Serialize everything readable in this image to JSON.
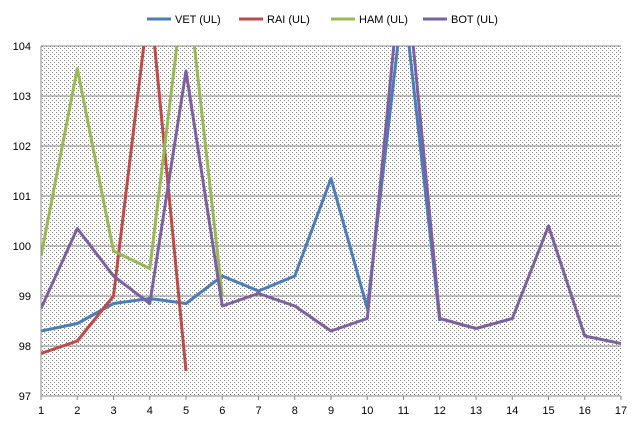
{
  "chart_data": {
    "type": "line",
    "title": "",
    "xlabel": "",
    "ylabel": "",
    "x": [
      1,
      2,
      3,
      4,
      5,
      6,
      7,
      8,
      9,
      10,
      11,
      12,
      13,
      14,
      15,
      16,
      17
    ],
    "x_tick_labels": [
      "1",
      "2",
      "3",
      "4",
      "5",
      "6",
      "7",
      "8",
      "9",
      "10",
      "11",
      "12",
      "13",
      "14",
      "15",
      "16",
      "17"
    ],
    "ylim": [
      97,
      104
    ],
    "y_ticks": [
      97,
      98,
      99,
      100,
      101,
      102,
      103,
      104
    ],
    "y_tick_labels": [
      "97",
      "98",
      "99",
      "100",
      "101",
      "102",
      "103",
      "104"
    ],
    "grid": true,
    "plot_area_background": "dotted",
    "legend_position": "top",
    "series": [
      {
        "name": "VET (UL)",
        "color": "#4a7ebb",
        "values": [
          98.3,
          98.45,
          98.85,
          98.95,
          98.85,
          99.4,
          99.1,
          99.4,
          101.35,
          98.75,
          105.0,
          98.5,
          null,
          null,
          null,
          null,
          null
        ]
      },
      {
        "name": "RAI (UL)",
        "color": "#be4b48",
        "values": [
          97.85,
          98.1,
          99.0,
          105.0,
          97.5,
          null,
          null,
          null,
          null,
          null,
          null,
          null,
          null,
          null,
          null,
          null,
          null
        ]
      },
      {
        "name": "HAM (UL)",
        "color": "#98b954",
        "values": [
          99.8,
          103.55,
          99.9,
          99.55,
          105.5,
          99.0,
          null,
          null,
          null,
          null,
          null,
          null,
          null,
          null,
          null,
          null,
          null
        ]
      },
      {
        "name": "BOT (UL)",
        "color": "#7d60a0",
        "values": [
          98.75,
          100.35,
          99.4,
          98.85,
          103.5,
          98.8,
          99.05,
          98.8,
          98.3,
          98.55,
          106.0,
          98.55,
          98.35,
          98.55,
          100.4,
          98.2,
          98.05
        ]
      }
    ]
  }
}
